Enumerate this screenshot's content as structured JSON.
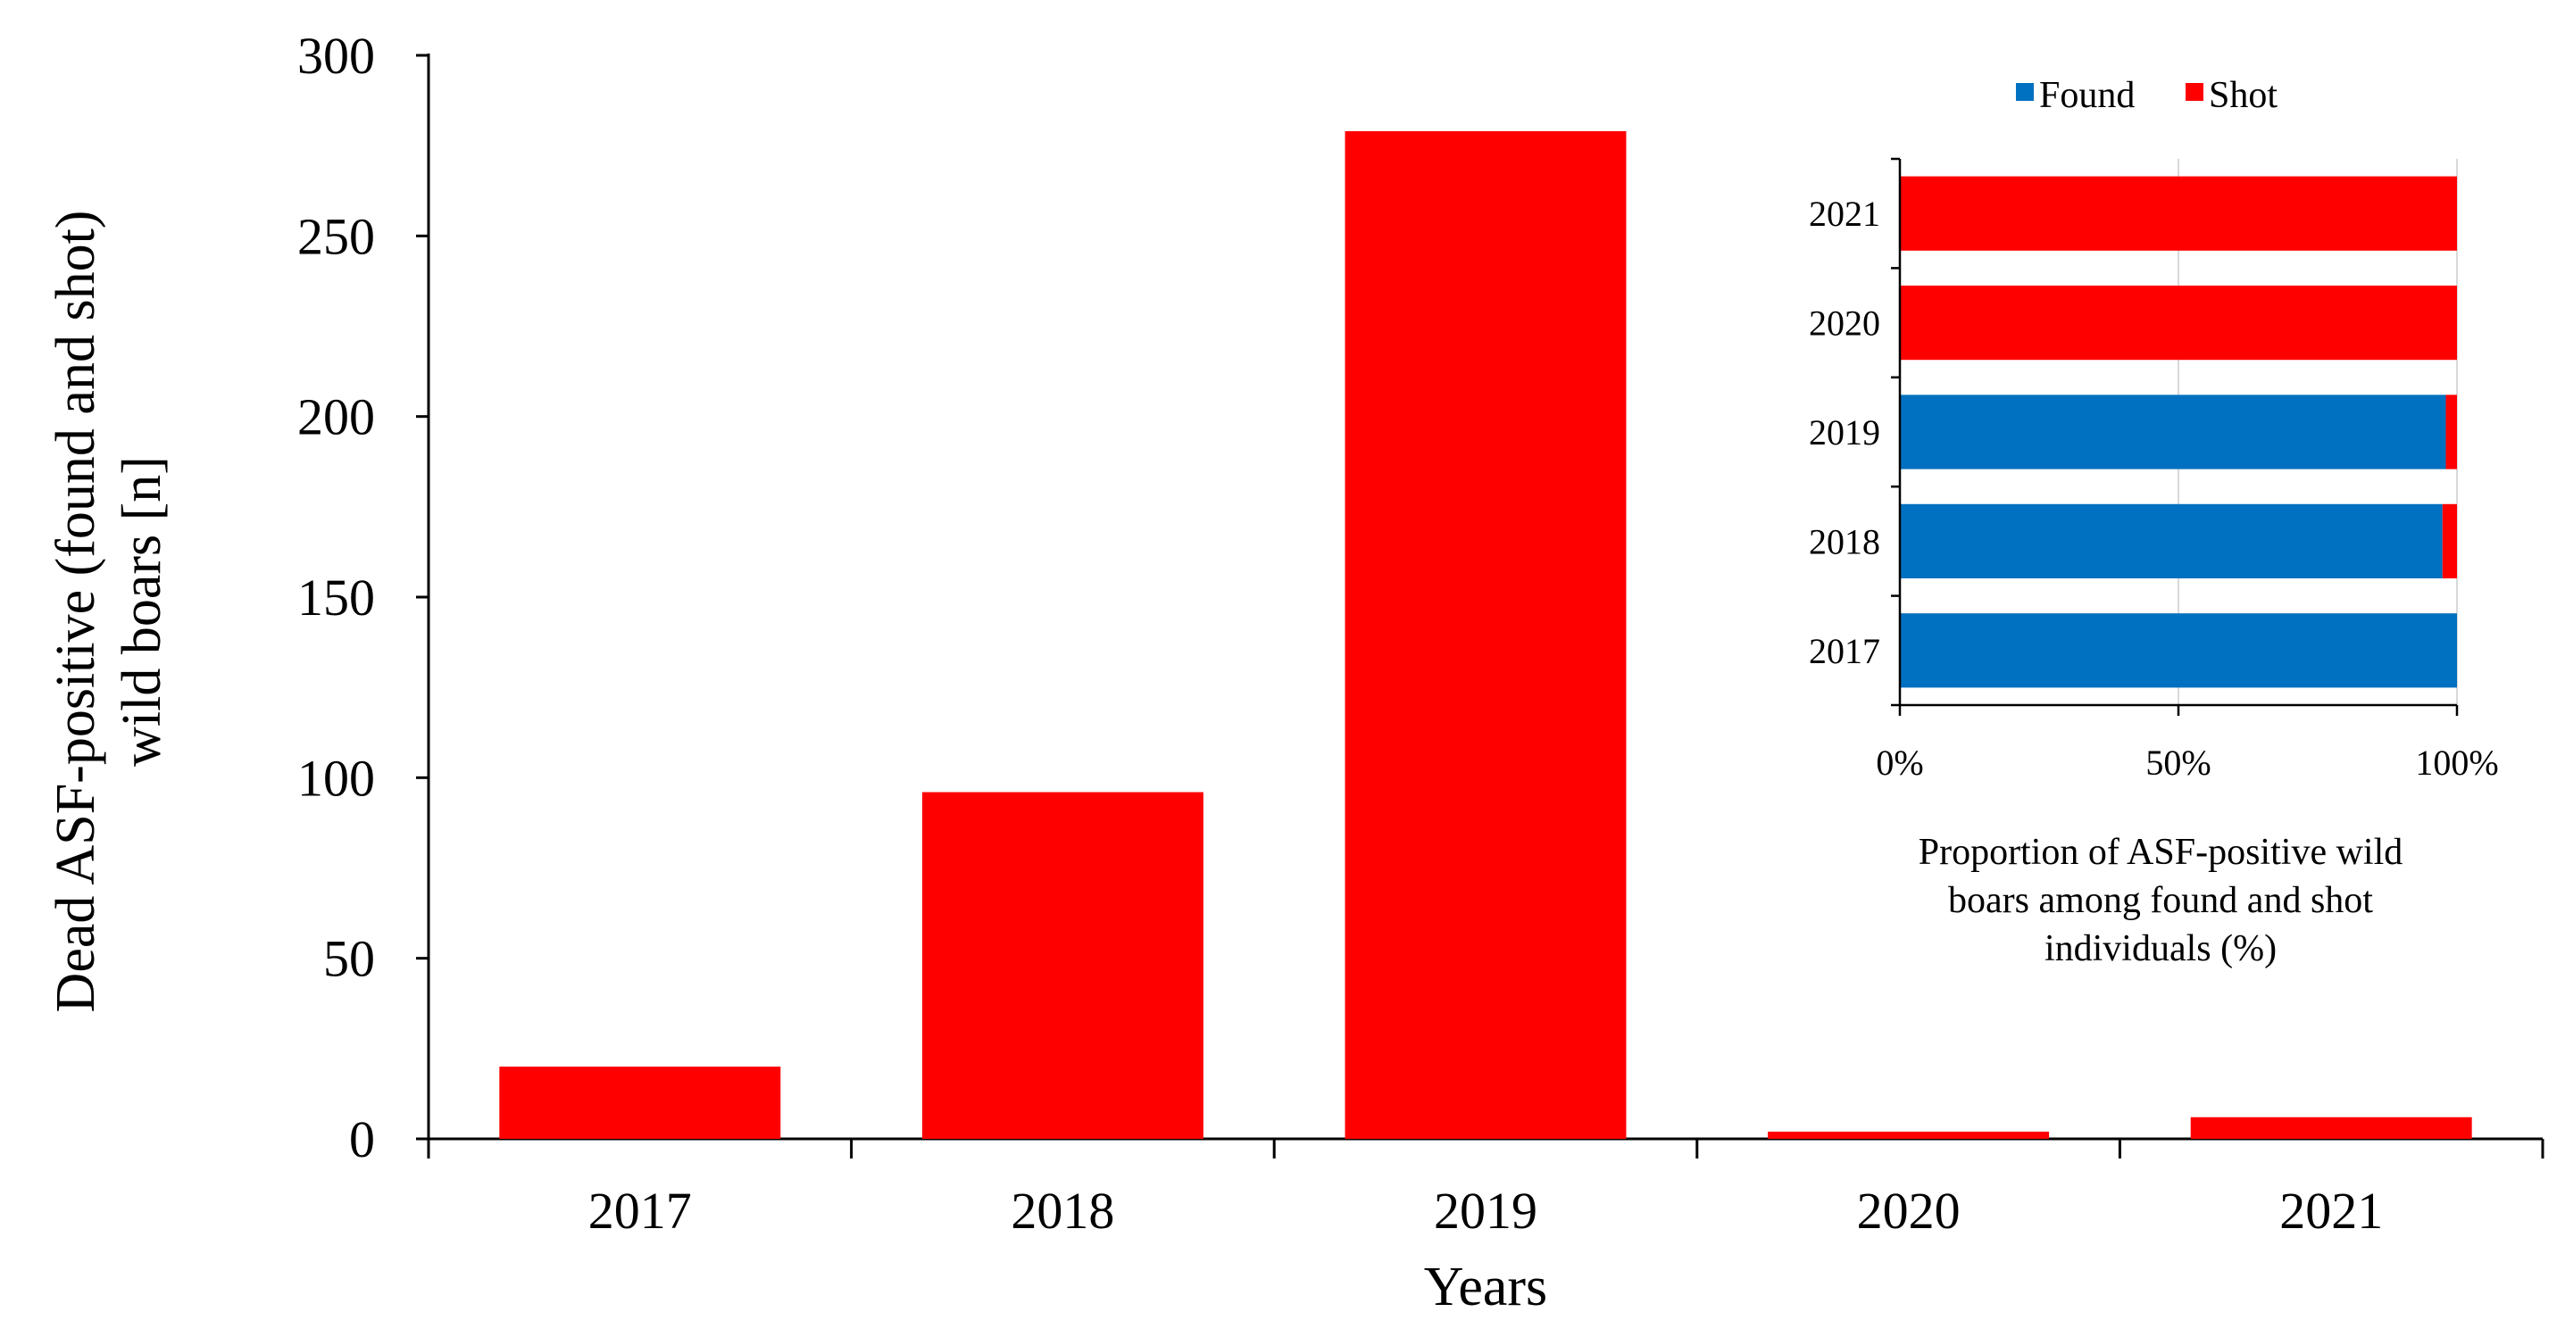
{
  "chart_data": [
    {
      "type": "bar",
      "categories": [
        "2017",
        "2018",
        "2019",
        "2020",
        "2021"
      ],
      "values": [
        20,
        96,
        279,
        2,
        6
      ],
      "ylim": [
        0,
        300
      ],
      "yticks": [
        0,
        50,
        100,
        150,
        200,
        250,
        300
      ],
      "xlabel": "Years",
      "ylabel_lines": [
        "Dead ASF-positive  (found and shot)",
        "wild boars [n]"
      ],
      "color": "#ff0000",
      "grid": false
    },
    {
      "type": "bar",
      "orientation": "horizontal",
      "stacked": "percent",
      "categories": [
        "2017",
        "2018",
        "2019",
        "2020",
        "2021"
      ],
      "series": [
        {
          "name": "Found",
          "values": [
            100,
            97.4,
            98,
            0,
            0
          ],
          "color": "#0070c0"
        },
        {
          "name": "Shot",
          "values": [
            0,
            2.6,
            2,
            100,
            100
          ],
          "color": "#ff0000"
        }
      ],
      "xlim": [
        0,
        100
      ],
      "xticks": [
        "0%",
        "50%",
        "100%"
      ],
      "xtick_values": [
        0,
        50,
        100
      ],
      "xlabel_lines": [
        "Proportion of ASF-positive wild",
        "boars among found and shot",
        "individuals  (%)"
      ],
      "legend_position": "top",
      "grid": true
    }
  ]
}
